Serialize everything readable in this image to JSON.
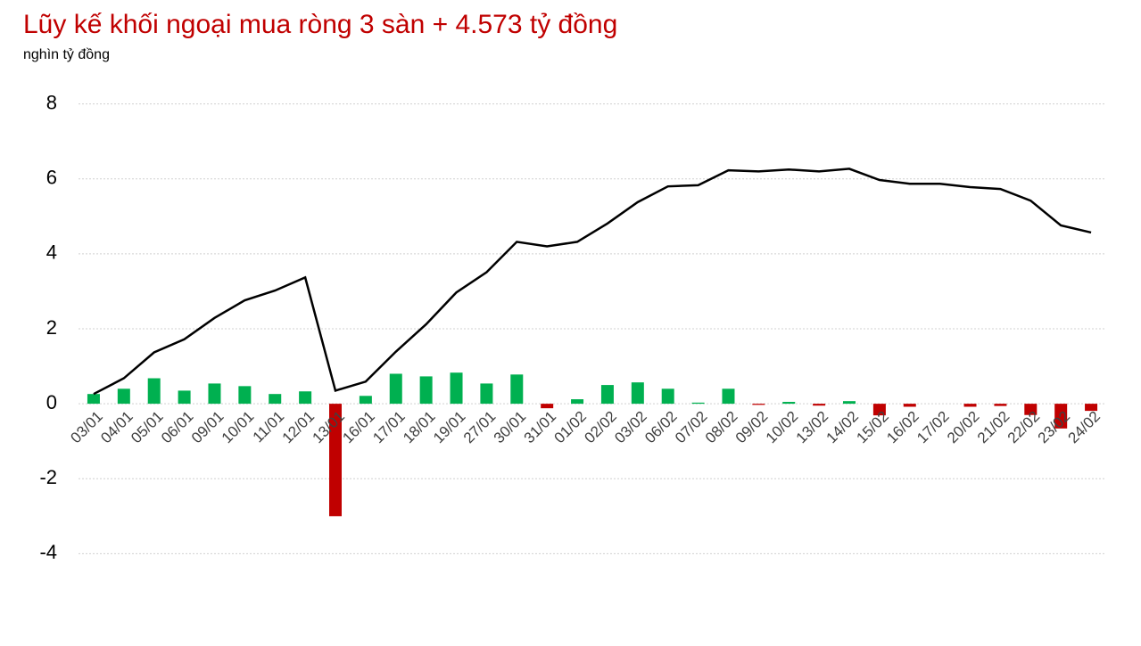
{
  "chart_data": {
    "type": "bar",
    "title": "Lũy kế khối ngoại mua ròng 3 sàn + 4.573 tỷ đồng",
    "subtitle": "nghìn tỷ đồng",
    "categories": [
      "03/01",
      "04/01",
      "05/01",
      "06/01",
      "09/01",
      "10/01",
      "11/01",
      "12/01",
      "13/01",
      "16/01",
      "17/01",
      "18/01",
      "19/01",
      "27/01",
      "30/01",
      "31/01",
      "01/02",
      "02/02",
      "03/02",
      "06/02",
      "07/02",
      "08/02",
      "09/02",
      "10/02",
      "13/02",
      "14/02",
      "15/02",
      "16/02",
      "17/02",
      "20/02",
      "21/02",
      "22/02",
      "23/02",
      "24/02"
    ],
    "series": [
      {
        "type": "bar",
        "color": "#00b050",
        "negative_color": "#c00000",
        "values": [
          0.26,
          0.4,
          0.68,
          0.35,
          0.54,
          0.47,
          0.26,
          0.33,
          -3.0,
          0.21,
          0.8,
          0.73,
          0.83,
          0.54,
          0.78,
          -0.12,
          0.12,
          0.5,
          0.57,
          0.4,
          0.03,
          0.4,
          -0.03,
          0.05,
          -0.05,
          0.07,
          -0.31,
          -0.08,
          0,
          -0.08,
          -0.06,
          -0.3,
          -0.66,
          -0.19
        ]
      },
      {
        "type": "line",
        "color": "#000000",
        "values": [
          0.26,
          0.68,
          1.37,
          1.72,
          2.29,
          2.76,
          3.02,
          3.37,
          0.35,
          0.59,
          1.39,
          2.12,
          2.97,
          3.51,
          4.32,
          4.2,
          4.32,
          4.81,
          5.38,
          5.8,
          5.83,
          6.23,
          6.2,
          6.25,
          6.2,
          6.27,
          5.97,
          5.87,
          5.87,
          5.78,
          5.73,
          5.42,
          4.76,
          4.57
        ]
      }
    ],
    "ylim": [
      -4.8,
      8.8
    ],
    "yticks": [
      -4,
      -2,
      0,
      2,
      4,
      6,
      8
    ],
    "grid": true
  }
}
